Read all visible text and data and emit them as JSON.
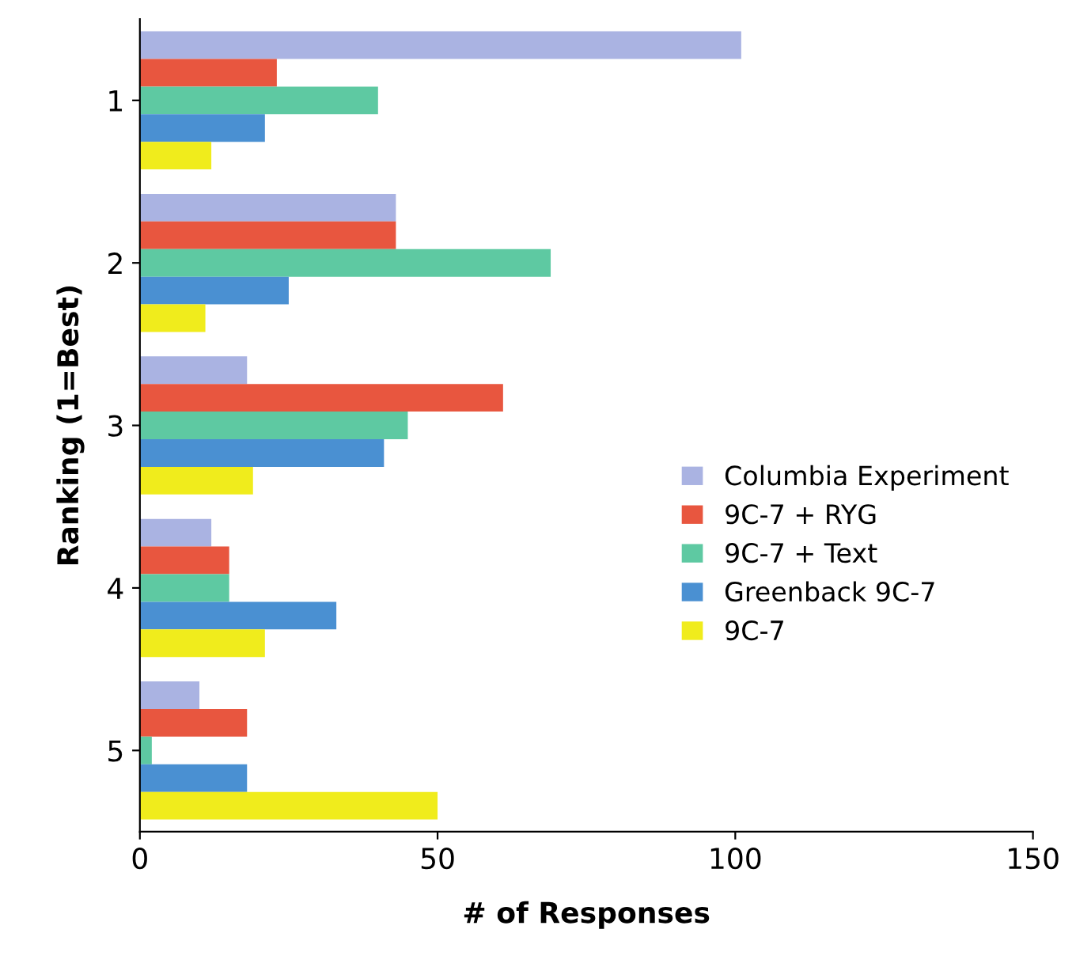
{
  "chart_data": {
    "type": "bar",
    "orientation": "horizontal",
    "xlabel": "# of Responses",
    "ylabel": "Ranking (1=Best)",
    "categories": [
      "1",
      "2",
      "3",
      "4",
      "5"
    ],
    "series": [
      {
        "name": "Columbia Experiment",
        "color": "#aab3e2",
        "values": [
          101,
          43,
          18,
          12,
          10
        ]
      },
      {
        "name": "9C-7 + RYG",
        "color": "#e8563f",
        "values": [
          23,
          43,
          61,
          15,
          18
        ]
      },
      {
        "name": "9C-7 + Text",
        "color": "#5ec9a2",
        "values": [
          40,
          69,
          45,
          15,
          2
        ]
      },
      {
        "name": "Greenback 9C-7",
        "color": "#4a90d2",
        "values": [
          21,
          25,
          41,
          33,
          18
        ]
      },
      {
        "name": "9C-7",
        "color": "#f0ec1c",
        "values": [
          12,
          11,
          19,
          21,
          50
        ]
      }
    ],
    "xlim": [
      0,
      150
    ],
    "xticks": [
      0,
      50,
      100,
      150
    ],
    "grid": false,
    "legend": "bottom right"
  }
}
